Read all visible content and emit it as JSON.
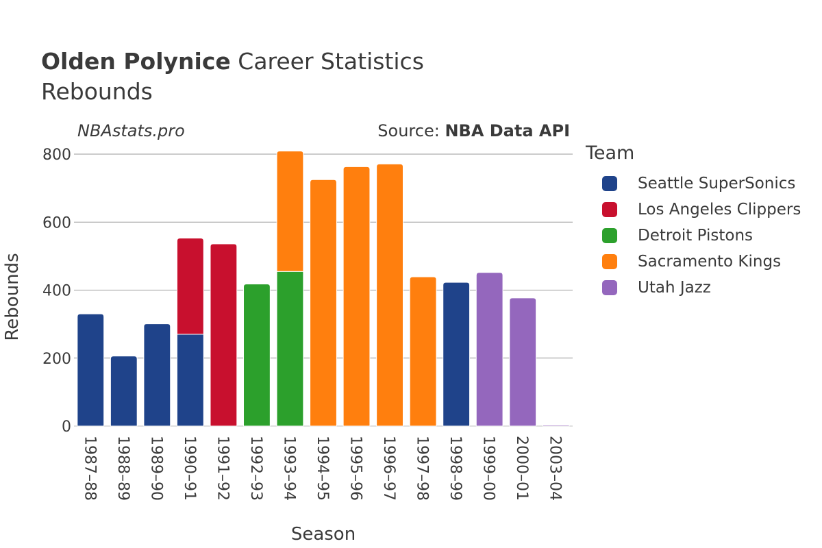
{
  "chart_data": {
    "type": "bar",
    "stacked": true,
    "title_bold": "Olden Polynice",
    "title_rest": " Career Statistics",
    "subtitle": "Rebounds",
    "watermark": "NBAstats.pro",
    "source_label": "Source: ",
    "source_bold": "NBA Data API",
    "xlabel": "Season",
    "ylabel": "Rebounds",
    "ylim": [
      0,
      800
    ],
    "yticks": [
      0,
      200,
      400,
      600,
      800
    ],
    "grid": true,
    "legend_title": "Team",
    "legend_position": "right",
    "categories": [
      "1987–88",
      "1988–89",
      "1989–90",
      "1990–91",
      "1991–92",
      "1992–93",
      "1993–94",
      "1994–95",
      "1995–96",
      "1996–97",
      "1997–98",
      "1998–99",
      "1999–00",
      "2000–01",
      "2003–04"
    ],
    "series": [
      {
        "name": "Seattle SuperSonics",
        "color": "#1f438a",
        "values": [
          330,
          206,
          301,
          270,
          0,
          0,
          0,
          0,
          0,
          0,
          0,
          423,
          0,
          0,
          0
        ]
      },
      {
        "name": "Los Angeles Clippers",
        "color": "#c8102e",
        "values": [
          0,
          0,
          0,
          283,
          536,
          0,
          0,
          0,
          0,
          0,
          0,
          0,
          0,
          0,
          0
        ]
      },
      {
        "name": "Detroit Pistons",
        "color": "#2ca02c",
        "values": [
          0,
          0,
          0,
          0,
          0,
          418,
          455,
          0,
          0,
          0,
          0,
          0,
          0,
          0,
          0
        ]
      },
      {
        "name": "Sacramento Kings",
        "color": "#ff7f0e",
        "values": [
          0,
          0,
          0,
          0,
          0,
          0,
          354,
          725,
          763,
          771,
          439,
          0,
          0,
          0,
          0
        ]
      },
      {
        "name": "Utah Jazz",
        "color": "#9467bd",
        "values": [
          0,
          0,
          0,
          0,
          0,
          0,
          0,
          0,
          0,
          0,
          0,
          0,
          452,
          377,
          3
        ]
      }
    ]
  }
}
